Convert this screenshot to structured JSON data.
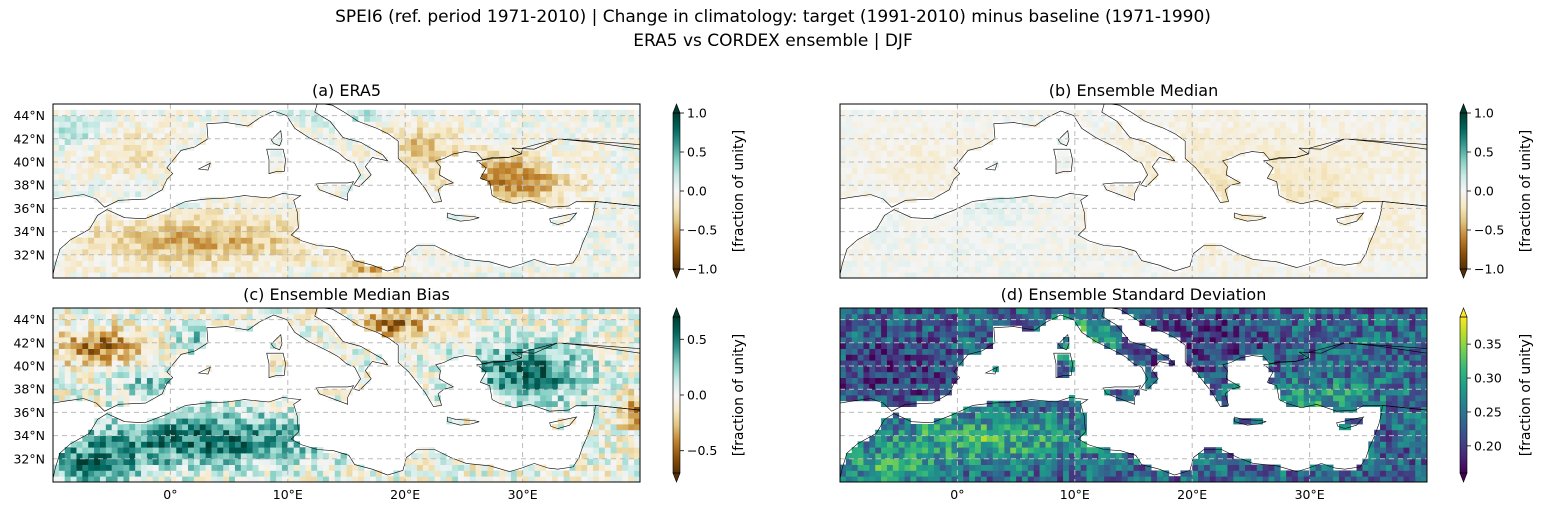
{
  "figure": {
    "title_line1": "SPEI6 (ref. period 1971-2010) | Change in climatology: target (1991-2010) minus baseline (1971-1990)",
    "title_line2": "ERA5 vs CORDEX ensemble | DJF"
  },
  "chart_data": [
    {
      "type": "heatmap",
      "panel": "a",
      "title": "(a) ERA5",
      "colormap": "BrBG",
      "colorbar_label": "[fraction of unity]",
      "colorbar_range": [
        -1.0,
        1.0
      ],
      "colorbar_ticks": [
        1.0,
        0.5,
        0.0,
        -0.5,
        -1.0
      ],
      "colorbar_tick_labels": [
        "1.0",
        "0.5",
        "0.0",
        "−0.5",
        "−1.0"
      ],
      "lat_ticks": [
        "44°N",
        "42°N",
        "40°N",
        "38°N",
        "36°N",
        "34°N",
        "32°N"
      ],
      "lon_ticks": [],
      "extent": {
        "lon": [
          -10,
          40
        ],
        "lat": [
          30,
          45
        ]
      },
      "grid": true,
      "pattern": "era5"
    },
    {
      "type": "heatmap",
      "panel": "b",
      "title": "(b) Ensemble Median",
      "colormap": "BrBG",
      "colorbar_label": "[fraction of unity]",
      "colorbar_range": [
        -1.0,
        1.0
      ],
      "colorbar_ticks": [
        1.0,
        0.5,
        0.0,
        -0.5,
        -1.0
      ],
      "colorbar_tick_labels": [
        "1.0",
        "0.5",
        "0.0",
        "−0.5",
        "−1.0"
      ],
      "lat_ticks": [],
      "lon_ticks": [],
      "extent": {
        "lon": [
          -10,
          40
        ],
        "lat": [
          30,
          45
        ]
      },
      "grid": true,
      "pattern": "median"
    },
    {
      "type": "heatmap",
      "panel": "c",
      "title": "(c) Ensemble Median Bias",
      "colormap": "BrBG",
      "colorbar_label": "[fraction of unity]",
      "colorbar_range": [
        -0.7,
        0.7
      ],
      "colorbar_ticks": [
        0.5,
        0.0,
        -0.5
      ],
      "colorbar_tick_labels": [
        "0.5",
        "0.0",
        "−0.5"
      ],
      "lat_ticks": [
        "44°N",
        "42°N",
        "40°N",
        "38°N",
        "36°N",
        "34°N",
        "32°N"
      ],
      "lon_ticks": [
        "0°",
        "10°E",
        "20°E",
        "30°E"
      ],
      "extent": {
        "lon": [
          -10,
          40
        ],
        "lat": [
          30,
          45
        ]
      },
      "grid": true,
      "pattern": "bias"
    },
    {
      "type": "heatmap",
      "panel": "d",
      "title": "(d) Ensemble Standard Deviation",
      "colormap": "viridis",
      "colorbar_label": "[fraction of unity]",
      "colorbar_range": [
        0.16,
        0.39
      ],
      "colorbar_ticks": [
        0.35,
        0.3,
        0.25,
        0.2
      ],
      "colorbar_tick_labels": [
        "0.35",
        "0.30",
        "0.25",
        "0.20"
      ],
      "lat_ticks": [],
      "lon_ticks": [
        "0°",
        "10°E",
        "20°E",
        "30°E"
      ],
      "extent": {
        "lon": [
          -10,
          40
        ],
        "lat": [
          30,
          45
        ]
      },
      "grid": true,
      "pattern": "std"
    }
  ]
}
